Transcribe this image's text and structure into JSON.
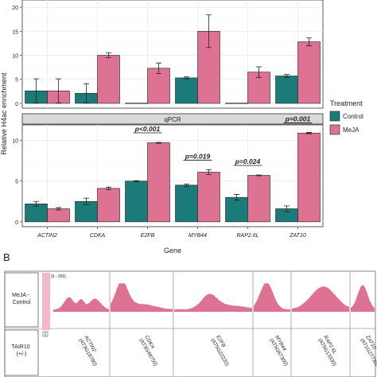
{
  "chart_data": [
    {
      "type": "bar",
      "panel": "top",
      "strip": "",
      "categories": [
        "ACTIN2",
        "CDKA",
        "E2FB",
        "MYB44",
        "RAP2.6L",
        "ZAT10"
      ],
      "yticks": [
        0,
        5,
        10,
        15,
        20
      ],
      "ylim": [
        -1,
        21.5
      ],
      "series": [
        {
          "name": "Control",
          "values": [
            2.6,
            2.1,
            0.05,
            5.3,
            0.05,
            5.7
          ],
          "errors": [
            2.5,
            2.0,
            0,
            0.2,
            0,
            0.3
          ]
        },
        {
          "name": "MeJA",
          "values": [
            2.6,
            10.0,
            7.3,
            15.0,
            6.5,
            12.8
          ],
          "errors": [
            2.5,
            0.5,
            1.1,
            3.4,
            1.1,
            0.8
          ]
        }
      ],
      "annotations": []
    },
    {
      "type": "bar",
      "panel": "bottom",
      "strip": "qPCR",
      "categories": [
        "ACTIN2",
        "CDKA",
        "E2FB",
        "MYB44",
        "RAP2.6L",
        "ZAT10"
      ],
      "yticks": [
        0,
        5,
        10
      ],
      "ylim": [
        -0.6,
        11.9
      ],
      "series": [
        {
          "name": "Control",
          "values": [
            2.2,
            2.5,
            5.0,
            4.5,
            3.0,
            1.6
          ],
          "errors": [
            0.3,
            0.4,
            0.05,
            0.15,
            0.35,
            0.35
          ]
        },
        {
          "name": "MeJA",
          "values": [
            1.6,
            4.1,
            9.7,
            6.1,
            5.7,
            10.9
          ],
          "errors": [
            0.15,
            0.15,
            0.05,
            0.3,
            0.05,
            0.08
          ]
        }
      ],
      "annotations": [
        {
          "category": "E2FB",
          "text": "p<0.001"
        },
        {
          "category": "MYB44",
          "text": "p=0.019"
        },
        {
          "category": "RAP2.6L",
          "text": "p=0.024"
        },
        {
          "category": "ZAT10",
          "text": "p=0.001"
        }
      ]
    }
  ],
  "labels": {
    "ylabel": "Relative H4ac enrichment",
    "xlabel": "Gene",
    "legend_title": "Treatment",
    "panel_b_letter": "B"
  },
  "track_panel": {
    "row_labels": [
      "MeJA -\nControl",
      "TAIR10\n(+/-)"
    ],
    "scale_labels": [
      "(0 - 200)",
      "1"
    ],
    "gene_labels": [
      "ACTIN2\n(AT3G18780)",
      "CDKA\n(AT3G48750)",
      "E2FB\n(AT5G22220)",
      "MYB44\n(AT5G67300)",
      "RAP2.6L\n(AT5G13330)",
      "ZAT10\n(AT1G27730)"
    ],
    "track_color": "#DD7293"
  },
  "colors": {
    "control": "#1B7B78",
    "meja": "#DD7293",
    "panel_bg": "#FFFFFF",
    "grid": "#EBEBEB",
    "strip_bg": "#D9D9D9"
  }
}
